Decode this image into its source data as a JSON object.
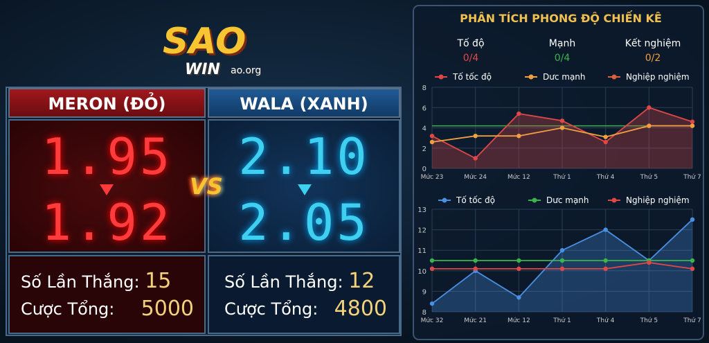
{
  "logo": {
    "main": "SAO",
    "sub": "WIN",
    "domain": "ao.org"
  },
  "meron": {
    "title": "MERON (ĐỎ)",
    "odds_old": "1.95",
    "odds_new": "1.92",
    "wins_label": "Số Lần Thắng:",
    "wins": 15,
    "total_label": "Cược Tổng:",
    "total": 5000
  },
  "wala": {
    "title": "WALA (XANH)",
    "odds_old": "2.10",
    "odds_new": "2.05",
    "wins_label": "Số Lần Thắng:",
    "wins": 12,
    "total_label": "Cược Tổng:",
    "total": 4800
  },
  "vs": "VS",
  "analysis": {
    "title": "PHÂN TÍCH PHONG ĐỘ CHIẾN KÊ",
    "stats": [
      {
        "label": "Tố độ",
        "value": "0/4"
      },
      {
        "label": "Mạnh",
        "value": "0/4"
      },
      {
        "label": "Kết nghiệm",
        "value": "0/2"
      }
    ],
    "chart_data": [
      {
        "type": "line",
        "categories": [
          "Mức 23",
          "Mức 24",
          "Mức 12",
          "Thứ 1",
          "Thứ 4",
          "Thứ 5",
          "Thứ 7"
        ],
        "ylim": [
          0,
          8
        ],
        "yticks": [
          0,
          2,
          4,
          6,
          8
        ],
        "grid": true,
        "reference_line": {
          "value": 4.2,
          "color": "#3cb44b"
        },
        "series": [
          {
            "name": "Tố tốc độ",
            "color": "#e04848",
            "area": true,
            "values": [
              3.2,
              1.0,
              5.4,
              4.7,
              2.6,
              6.0,
              4.6
            ]
          },
          {
            "name": "Dưc mạnh",
            "color": "#f0a040",
            "values": [
              2.6,
              3.2,
              3.2,
              4.0,
              3.1,
              4.2,
              4.2
            ]
          },
          {
            "name": "Nghiệp nghiệm",
            "color": "#d9603b",
            "values": [
              null,
              null,
              null,
              null,
              null,
              null,
              null
            ]
          }
        ]
      },
      {
        "type": "line",
        "categories": [
          "Mức 32",
          "Mức 21",
          "Mức 12",
          "Thứ 1",
          "Thứ 4",
          "Thứ 5",
          "Thứ 7"
        ],
        "ylim": [
          8,
          13
        ],
        "yticks": [
          8,
          9,
          10,
          11,
          12,
          13
        ],
        "grid": true,
        "series": [
          {
            "name": "Tố tốc độ",
            "color": "#4a90e2",
            "area": true,
            "values": [
              8.4,
              10.0,
              8.7,
              11.0,
              12.0,
              10.5,
              12.5
            ]
          },
          {
            "name": "Dưc mạnh",
            "color": "#3cb44b",
            "values": [
              10.5,
              10.5,
              10.5,
              10.5,
              10.5,
              10.5,
              10.5
            ]
          },
          {
            "name": "Nghiệp nghiệm",
            "color": "#e04848",
            "values": [
              10.1,
              10.1,
              10.1,
              10.1,
              10.1,
              10.4,
              10.1
            ]
          }
        ]
      }
    ]
  }
}
